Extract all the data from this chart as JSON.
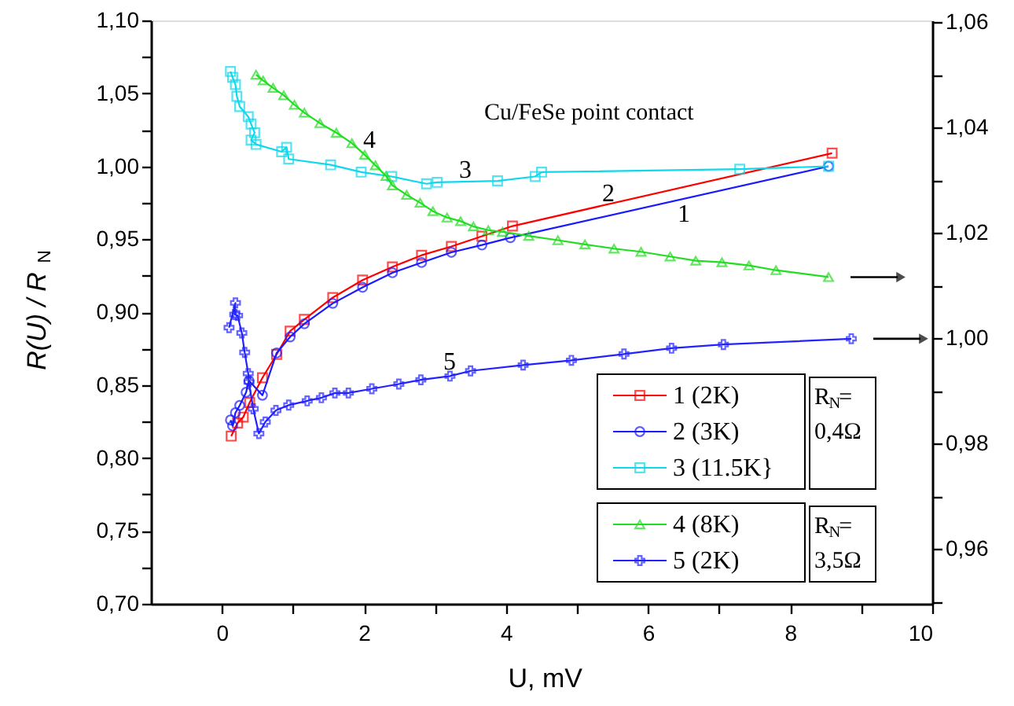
{
  "chart_data": {
    "type": "line",
    "xlabel": "U, mV",
    "ylabel": "R(U) / R$_{N}$",
    "xlim": [
      -1,
      10
    ],
    "ylim": [
      0.7,
      1.1
    ],
    "y2lim": [
      0.9496,
      1.0603
    ],
    "xticks": [
      0,
      {
        "value": 1,
        "label": null
      },
      2,
      {
        "value": 3,
        "label": null
      },
      4,
      {
        "value": 5,
        "label": null
      },
      6,
      {
        "value": 7,
        "label": null
      },
      8,
      {
        "value": 9,
        "label": null
      },
      10
    ],
    "yticks": [
      {
        "value": 0.7,
        "label": "0,70"
      },
      {
        "value": 0.725,
        "label": null
      },
      {
        "value": 0.75,
        "label": "0,75"
      },
      {
        "value": 0.775,
        "label": null
      },
      {
        "value": 0.8,
        "label": "0,80"
      },
      {
        "value": 0.825,
        "label": null
      },
      {
        "value": 0.85,
        "label": "0,85"
      },
      {
        "value": 0.875,
        "label": null
      },
      {
        "value": 0.9,
        "label": "0,90"
      },
      {
        "value": 0.925,
        "label": null
      },
      {
        "value": 0.95,
        "label": "0,95"
      },
      {
        "value": 0.975,
        "label": null
      },
      {
        "value": 1.0,
        "label": "1,00"
      },
      {
        "value": 1.025,
        "label": null
      },
      {
        "value": 1.05,
        "label": "1,05"
      },
      {
        "value": 1.075,
        "label": null
      },
      {
        "value": 1.1,
        "label": "1,10"
      }
    ],
    "y2ticks": [
      {
        "value": 0.95,
        "label": null
      },
      {
        "value": 0.96,
        "label": "0,96"
      },
      {
        "value": 0.97,
        "label": null
      },
      {
        "value": 0.98,
        "label": "0,98"
      },
      {
        "value": 0.99,
        "label": null
      },
      {
        "value": 1.0,
        "label": "1,00"
      },
      {
        "value": 1.01,
        "label": null
      },
      {
        "value": 1.02,
        "label": "1,02"
      },
      {
        "value": 1.03,
        "label": null
      },
      {
        "value": 1.04,
        "label": "1,04"
      },
      {
        "value": 1.05,
        "label": null
      },
      {
        "value": 1.06,
        "label": "1,06"
      }
    ],
    "legend": "bottom right",
    "line_style": "solid",
    "series": [
      {
        "name": "1 (2K)",
        "color": "#ff0000",
        "marker": "square",
        "x": [
          0.13,
          0.22,
          0.3,
          0.39,
          0.57,
          0.77,
          0.96,
          1.16,
          1.56,
          1.98,
          2.4,
          2.81,
          3.23,
          3.66,
          4.09,
          8.59
        ],
        "values": [
          0.815,
          0.824,
          0.828,
          0.838,
          0.855,
          0.871,
          0.887,
          0.895,
          0.91,
          0.922,
          0.931,
          0.939,
          0.945,
          0.952,
          0.959,
          1.009
        ]
      },
      {
        "name": "2 (3K)",
        "color": "#1a1aff",
        "marker": "circle",
        "x": [
          0.12,
          0.15,
          0.19,
          0.25,
          0.34,
          0.38,
          0.57,
          0.77,
          0.96,
          1.16,
          1.56,
          1.98,
          2.4,
          2.81,
          3.23,
          3.66,
          4.06,
          8.54
        ],
        "values": [
          0.826,
          0.822,
          0.831,
          0.836,
          0.845,
          0.853,
          0.843,
          0.872,
          0.883,
          0.892,
          0.906,
          0.917,
          0.927,
          0.934,
          0.941,
          0.946,
          0.951,
          1.0
        ]
      },
      {
        "name": "3 (11.5K}",
        "color": "#10d8ec",
        "marker": "square",
        "x": [
          0.12,
          0.15,
          0.19,
          0.21,
          0.25,
          0.37,
          0.41,
          0.46,
          0.41,
          0.48,
          0.84,
          0.91,
          0.94,
          1.53,
          1.96,
          2.39,
          2.88,
          3.03,
          3.88,
          4.41,
          4.5,
          7.29,
          8.54
        ],
        "values": [
          1.065,
          1.061,
          1.056,
          1.048,
          1.041,
          1.034,
          1.029,
          1.023,
          1.018,
          1.015,
          1.01,
          1.013,
          1.005,
          1.001,
          0.996,
          0.993,
          0.988,
          0.989,
          0.99,
          0.993,
          0.996,
          0.998,
          1.0
        ]
      },
      {
        "name": "4 (8K)",
        "color": "#22dd22",
        "marker": "triangle",
        "axis": "y2",
        "x": [
          0.48,
          0.58,
          0.72,
          0.87,
          1.02,
          1.16,
          1.38,
          1.61,
          1.83,
          2.01,
          2.16,
          2.31,
          2.4,
          2.6,
          2.79,
          2.97,
          3.17,
          3.36,
          3.54,
          3.75,
          3.95,
          4.32,
          4.73,
          5.11,
          5.52,
          5.9,
          6.31,
          6.67,
          7.04,
          7.42,
          7.8,
          8.54
        ],
        "values": [
          1.05,
          1.0489,
          1.0475,
          1.0461,
          1.0443,
          1.0428,
          1.0408,
          1.039,
          1.037,
          1.0348,
          1.0328,
          1.0308,
          1.029,
          1.0272,
          1.0257,
          1.0241,
          1.0229,
          1.0222,
          1.0212,
          1.0205,
          1.0202,
          1.0194,
          1.0186,
          1.0178,
          1.017,
          1.0164,
          1.0155,
          1.0147,
          1.0144,
          1.0138,
          1.0129,
          1.0116
        ]
      },
      {
        "name": "5 (2K)",
        "color": "#2222ff",
        "marker": "cross",
        "axis": "y2",
        "x": [
          0.1,
          0.19,
          0.18,
          0.22,
          0.28,
          0.32,
          0.37,
          0.38,
          0.44,
          0.52,
          0.61,
          0.76,
          0.94,
          1.2,
          1.4,
          1.59,
          1.78,
          2.11,
          2.49,
          2.8,
          3.21,
          3.5,
          4.24,
          4.92,
          5.66,
          6.33,
          7.06,
          8.86
        ],
        "values": [
          1.002,
          1.0067,
          1.0045,
          1.0043,
          1.001,
          0.9973,
          0.9933,
          0.9917,
          0.9866,
          0.9819,
          0.9841,
          0.9863,
          0.9873,
          0.9881,
          0.9887,
          0.9896,
          0.9896,
          0.9904,
          0.9913,
          0.9921,
          0.9928,
          0.9938,
          0.9949,
          0.9958,
          0.997,
          0.9981,
          0.9988,
          0.9999
        ]
      }
    ],
    "annotations": [
      "1",
      "2",
      "3",
      "4",
      "5",
      "Cu/FeSe point contact",
      "R$_{N}$= 0,4Ω",
      "R$_{N}$= 3,5Ω"
    ]
  }
}
